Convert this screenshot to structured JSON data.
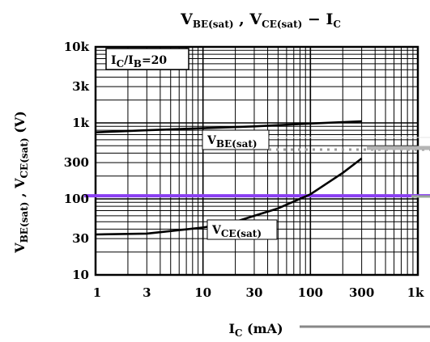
{
  "chart_data": {
    "type": "line",
    "title": {
      "v1": "V",
      "s1": "BE(sat)",
      "sep": " ,  ",
      "v2": "V",
      "s2": "CE(sat)",
      "dash": "  −  ",
      "v3": "I",
      "s3": "C"
    },
    "xlabel": {
      "main": "I",
      "sub": "C",
      "rest": " (mA)"
    },
    "ylabel": {
      "p1": "V",
      "s1": "BE(sat)",
      "mid": " , ",
      "p2": "V",
      "s2": "CE(sat)",
      "unit": "  (V)"
    },
    "x_scale": "log",
    "y_scale": "log",
    "xlim": [
      1,
      1000
    ],
    "ylim": [
      10,
      10000
    ],
    "x_ticks": [
      {
        "value": 1,
        "label": "1"
      },
      {
        "value": 3,
        "label": "3"
      },
      {
        "value": 10,
        "label": "10"
      },
      {
        "value": 30,
        "label": "30"
      },
      {
        "value": 100,
        "label": "100"
      },
      {
        "value": 300,
        "label": "300"
      },
      {
        "value": 1000,
        "label": "1k"
      }
    ],
    "y_ticks": [
      {
        "value": 10,
        "label": "10"
      },
      {
        "value": 30,
        "label": "30"
      },
      {
        "value": 100,
        "label": "100"
      },
      {
        "value": 300,
        "label": "300"
      },
      {
        "value": 1000,
        "label": "1k"
      },
      {
        "value": 3000,
        "label": "3k"
      },
      {
        "value": 10000,
        "label": "10k"
      }
    ],
    "grid": true,
    "condition": {
      "a": "I",
      "as": "C",
      "slash": "/I",
      "bs": "B",
      "eq": "=20"
    },
    "series": [
      {
        "name": {
          "main": "V",
          "sub": "BE(sat)"
        },
        "x": [
          1,
          3,
          10,
          30,
          100,
          300
        ],
        "y": [
          750,
          800,
          850,
          900,
          980,
          1050
        ]
      },
      {
        "name": {
          "main": "V",
          "sub": "CE(sat)"
        },
        "x": [
          1,
          3,
          10,
          20,
          50,
          100,
          200,
          300
        ],
        "y": [
          34,
          35,
          42,
          50,
          75,
          115,
          220,
          340
        ]
      }
    ],
    "reference_line": {
      "y": 110,
      "color": "#8a3ff2"
    },
    "colors": {
      "curve": "#000000",
      "grid": "#000000",
      "reference": "#8a3ff2",
      "artifact": "#9a9a9a"
    }
  }
}
